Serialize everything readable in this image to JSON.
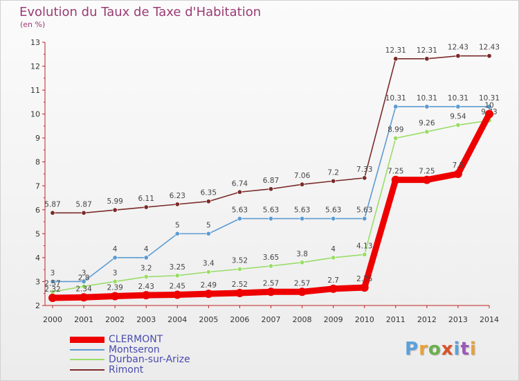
{
  "header": {
    "title": "Evolution du Taux de Taxe d'Habitation",
    "unit": "(en %)"
  },
  "logo": {
    "text": "Proxiti",
    "colors": [
      "#5aa0dc",
      "#e8a23a",
      "#6ab04c",
      "#d9532b",
      "#5aa0dc",
      "#9b59b6",
      "#e8a23a"
    ]
  },
  "chart_data": {
    "type": "line",
    "x": [
      "2000",
      "2001",
      "2002",
      "2003",
      "2004",
      "2005",
      "2006",
      "2007",
      "2008",
      "2009",
      "2010",
      "2011",
      "2012",
      "2013",
      "2014"
    ],
    "ylim": [
      2,
      13
    ],
    "yticks": [
      "2",
      "3",
      "4",
      "5",
      "6",
      "7",
      "8",
      "9",
      "10",
      "11",
      "12",
      "13"
    ],
    "grid": false,
    "legend": "bottom-left",
    "series": [
      {
        "name": "Rimont",
        "color": "#7b2a2a",
        "values": [
          5.87,
          5.87,
          5.99,
          6.11,
          6.23,
          6.35,
          6.74,
          6.87,
          7.06,
          7.2,
          7.33,
          12.31,
          12.31,
          12.43,
          12.43
        ],
        "labels": [
          "5.87",
          "5.87",
          "5.99",
          "6.11",
          "6.23",
          "6.35",
          "6.74",
          "6.87",
          "7.06",
          "7.2",
          "7.33",
          "12.31",
          "12.31",
          "12.43",
          "12.43"
        ]
      },
      {
        "name": "Montseron",
        "color": "#5c9bd1",
        "values": [
          3,
          3,
          4,
          4,
          5,
          5,
          5.63,
          5.63,
          5.63,
          5.63,
          5.63,
          10.31,
          10.31,
          10.31,
          10.31
        ],
        "labels": [
          "3",
          "3",
          "4",
          "4",
          "5",
          "5",
          "5.63",
          "5.63",
          "5.63",
          "5.63",
          "5.63",
          "10.31",
          "10.31",
          "10.31",
          "10.31"
        ]
      },
      {
        "name": "Durban-sur-Arize",
        "color": "#99dd66",
        "values": [
          2.57,
          2.8,
          3,
          3.2,
          3.25,
          3.4,
          3.52,
          3.65,
          3.8,
          4,
          4.13,
          8.99,
          9.26,
          9.54,
          9.73
        ],
        "labels": [
          "2.57",
          "2.8",
          "3",
          "3.2",
          "3.25",
          "3.4",
          "3.52",
          "3.65",
          "3.8",
          "4",
          "4.13",
          "8.99",
          "9.26",
          "9.54",
          "9.73"
        ]
      },
      {
        "name": "CLERMONT",
        "color": "#ee0000",
        "values": [
          2.32,
          2.34,
          2.39,
          2.43,
          2.45,
          2.49,
          2.52,
          2.57,
          2.57,
          2.7,
          2.75,
          7.25,
          7.25,
          7.5,
          10
        ],
        "labels": [
          "2.32",
          "2.34",
          "2.39",
          "2.43",
          "2.45",
          "2.49",
          "2.52",
          "2.57",
          "2.57",
          "2.7",
          "2.75",
          "7.25",
          "7.25",
          "7.5",
          "10"
        ]
      }
    ],
    "legend_order": [
      "CLERMONT",
      "Montseron",
      "Durban-sur-Arize",
      "Rimont"
    ]
  }
}
